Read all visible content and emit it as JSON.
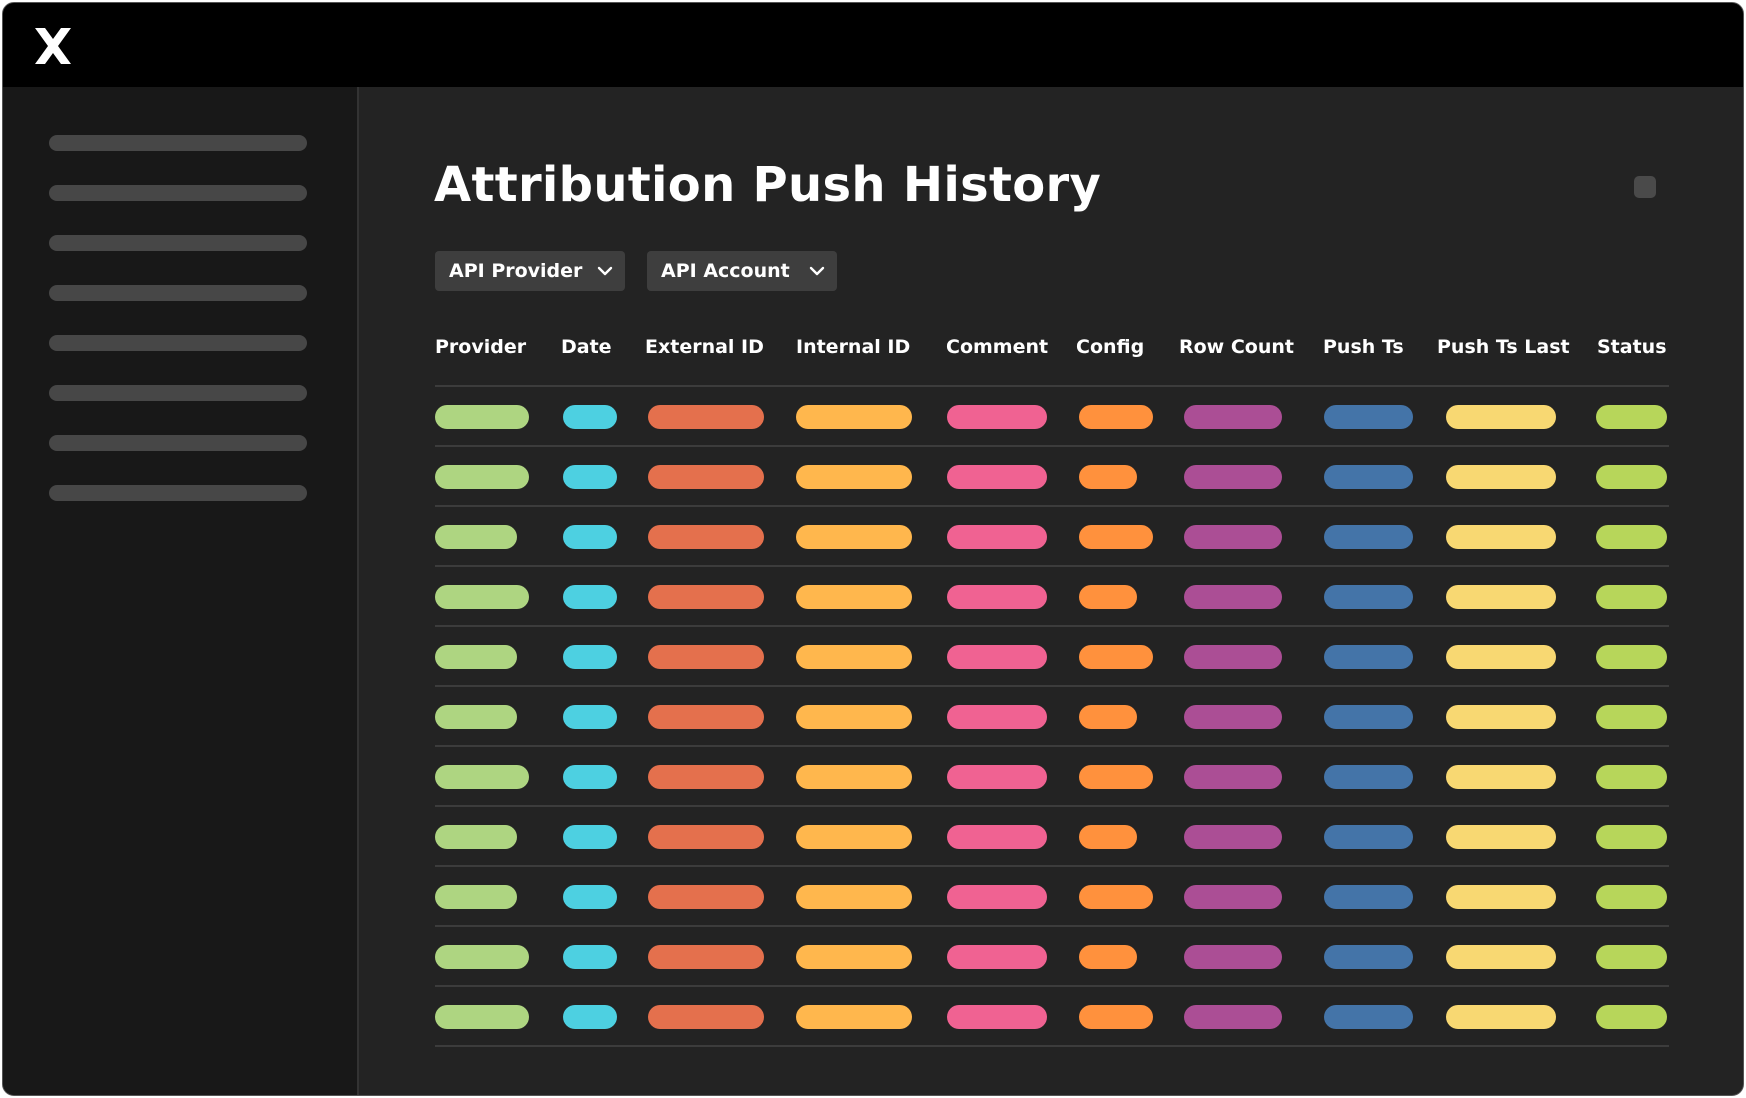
{
  "page": {
    "title": "Attribution Push History"
  },
  "filters": [
    {
      "label": "API Provider"
    },
    {
      "label": "API Account"
    }
  ],
  "table": {
    "columns": [
      {
        "label": "Provider",
        "color": "#aed581"
      },
      {
        "label": "Date",
        "color": "#4dd0e1"
      },
      {
        "label": "External ID",
        "color": "#e4704d"
      },
      {
        "label": "Internal ID",
        "color": "#ffb74d"
      },
      {
        "label": "Comment",
        "color": "#f06292"
      },
      {
        "label": "Config",
        "color": "#ff913d"
      },
      {
        "label": "Row Count",
        "color": "#ab4e95"
      },
      {
        "label": "Push Ts",
        "color": "#4474a8"
      },
      {
        "label": "Push Ts Last",
        "color": "#f8d872"
      },
      {
        "label": "Status",
        "color": "#b7d65a"
      }
    ],
    "row_count": 11
  },
  "icons": {
    "logo": "x-logo-icon",
    "filter_chevron": "chevron-down-icon"
  },
  "colors": {
    "topbar": "#000000",
    "sidebar": "#181818",
    "main": "#232323",
    "sidebar_placeholder": "#474747"
  }
}
